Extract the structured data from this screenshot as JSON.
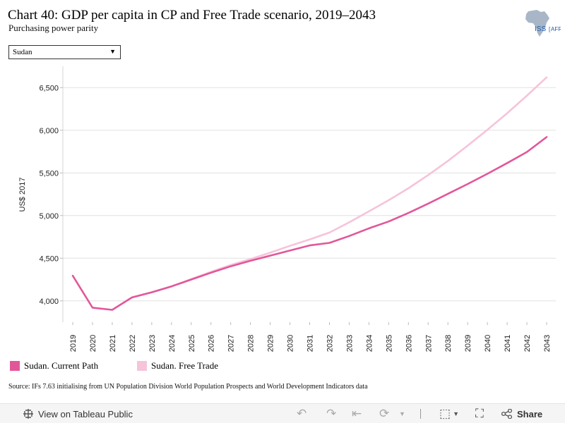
{
  "header": {
    "title": "Chart 40: GDP per capita in CP and Free Trade scenario, 2019–2043",
    "subtitle": "Purchasing power parity"
  },
  "logo": {
    "text": "ISS",
    "suffix": "AFRICA"
  },
  "filter": {
    "selected": "Sudan",
    "arrow": "▼"
  },
  "chart_data": {
    "type": "line",
    "title": "Chart 40: GDP per capita in CP and Free Trade scenario, 2019–2043",
    "subtitle": "Purchasing power parity",
    "xlabel": "",
    "ylabel": "US$ 2017",
    "x": [
      2019,
      2020,
      2021,
      2022,
      2023,
      2024,
      2025,
      2026,
      2027,
      2028,
      2029,
      2030,
      2031,
      2032,
      2033,
      2034,
      2035,
      2036,
      2037,
      2038,
      2039,
      2040,
      2041,
      2042,
      2043
    ],
    "ylim": [
      3750,
      6750
    ],
    "yticks": [
      4000,
      4500,
      5000,
      5500,
      6000,
      6500
    ],
    "ytick_labels": [
      "4,000",
      "4,500",
      "5,000",
      "5,500",
      "6,000",
      "6,500"
    ],
    "grid": true,
    "legend_position": "bottom-left",
    "series": [
      {
        "name": "Sudan. Current Path",
        "color": "#e2579a",
        "values": [
          4295,
          3920,
          3895,
          4040,
          4100,
          4170,
          4250,
          4330,
          4405,
          4470,
          4530,
          4590,
          4650,
          4680,
          4760,
          4850,
          4930,
          5030,
          5140,
          5255,
          5370,
          5490,
          5615,
          5745,
          5920
        ]
      },
      {
        "name": "Sudan. Free Trade",
        "color": "#f6c3da",
        "values": [
          null,
          null,
          null,
          4040,
          4100,
          4170,
          4255,
          4340,
          4420,
          4490,
          4565,
          4645,
          4720,
          4800,
          4920,
          5050,
          5180,
          5320,
          5475,
          5640,
          5820,
          6005,
          6200,
          6405,
          6620
        ]
      }
    ]
  },
  "source": "Source: IFs 7.63 initialising from UN Population Division World Population Prospects and World Development Indicators data",
  "toolbar": {
    "view_label": "View on Tableau Public",
    "share_label": "Share",
    "icons": [
      "undo-icon",
      "redo-icon",
      "revert-icon",
      "refresh-icon",
      "download-icon",
      "fullscreen-icon",
      "share-icon"
    ]
  }
}
